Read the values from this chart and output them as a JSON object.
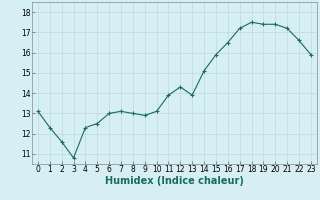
{
  "x": [
    0,
    1,
    2,
    3,
    4,
    5,
    6,
    7,
    8,
    9,
    10,
    11,
    12,
    13,
    14,
    15,
    16,
    17,
    18,
    19,
    20,
    21,
    22,
    23
  ],
  "y": [
    13.1,
    12.3,
    11.6,
    10.8,
    12.3,
    12.5,
    13.0,
    13.1,
    13.0,
    12.9,
    13.1,
    13.9,
    14.3,
    13.9,
    15.1,
    15.9,
    16.5,
    17.2,
    17.5,
    17.4,
    17.4,
    17.2,
    16.6,
    15.9
  ],
  "bg_color": "#d6eff5",
  "line_color": "#1a6b5a",
  "marker_color": "#1a6b5a",
  "grid_color": "#c0d8e0",
  "xlabel": "Humidex (Indice chaleur)",
  "xlim": [
    -0.5,
    23.5
  ],
  "ylim": [
    10.5,
    18.5
  ],
  "yticks": [
    11,
    12,
    13,
    14,
    15,
    16,
    17,
    18
  ],
  "xticks": [
    0,
    1,
    2,
    3,
    4,
    5,
    6,
    7,
    8,
    9,
    10,
    11,
    12,
    13,
    14,
    15,
    16,
    17,
    18,
    19,
    20,
    21,
    22,
    23
  ],
  "tick_fontsize": 5.5,
  "xlabel_fontsize": 7.0
}
